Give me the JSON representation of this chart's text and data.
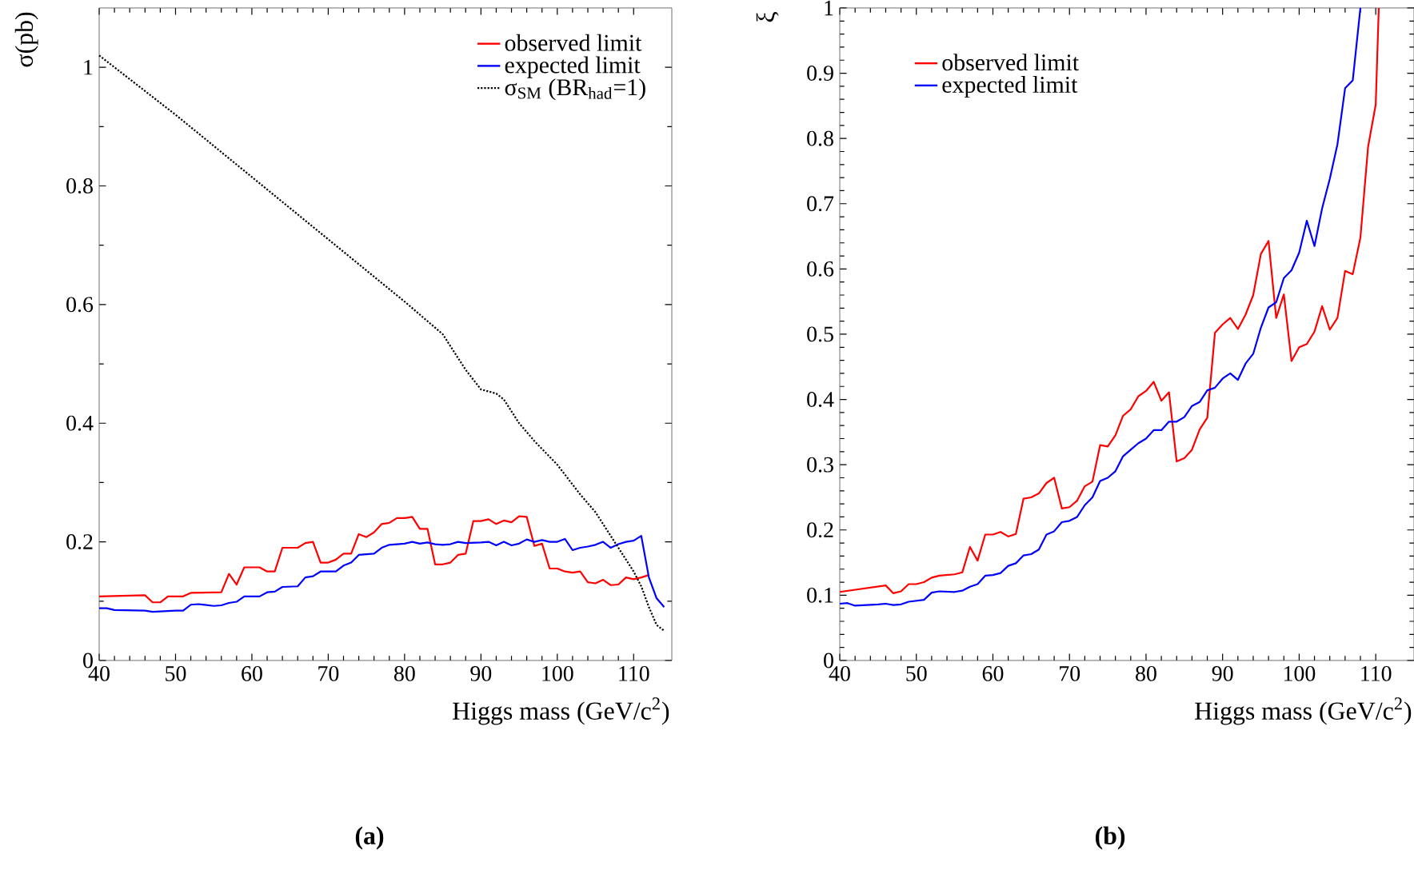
{
  "chart_data": [
    {
      "type": "line",
      "xlabel": "Higgs mass (GeV/c$^{2}$)",
      "ylabel": "σ(pb)",
      "xlim": [
        40,
        115
      ],
      "ylim": [
        0,
        1.1
      ],
      "xticks": [
        40,
        50,
        60,
        70,
        80,
        90,
        100,
        110
      ],
      "yticks": [
        0,
        0.2,
        0.4,
        0.6,
        0.8,
        1
      ],
      "legend": "top right",
      "annotations": [
        "(a)"
      ],
      "series": [
        {
          "name": "observed limit",
          "color": "#ff0000",
          "x": [
            40,
            46,
            47,
            48,
            49,
            51,
            52,
            56,
            57,
            58,
            59,
            61,
            62,
            63,
            64,
            66,
            67,
            68,
            69,
            70,
            71,
            72,
            73,
            74,
            75,
            76,
            77,
            78,
            79,
            80,
            81,
            82,
            83,
            84,
            85,
            86,
            87,
            88,
            89,
            90,
            91,
            92,
            93,
            94,
            95,
            96,
            97,
            98,
            99,
            100,
            101,
            102,
            103,
            104,
            105,
            106,
            107,
            108,
            109,
            110,
            111,
            112
          ],
          "values": [
            0.108,
            0.11,
            0.098,
            0.098,
            0.108,
            0.108,
            0.114,
            0.115,
            0.146,
            0.128,
            0.157,
            0.157,
            0.15,
            0.15,
            0.19,
            0.19,
            0.198,
            0.2,
            0.165,
            0.165,
            0.17,
            0.18,
            0.18,
            0.213,
            0.208,
            0.216,
            0.23,
            0.232,
            0.24,
            0.24,
            0.242,
            0.222,
            0.222,
            0.162,
            0.162,
            0.165,
            0.178,
            0.18,
            0.235,
            0.235,
            0.238,
            0.23,
            0.236,
            0.233,
            0.243,
            0.242,
            0.193,
            0.197,
            0.155,
            0.155,
            0.15,
            0.148,
            0.15,
            0.132,
            0.13,
            0.136,
            0.127,
            0.128,
            0.14,
            0.137,
            0.14,
            0.144
          ]
        },
        {
          "name": "expected limit",
          "color": "#0000ff",
          "x": [
            40,
            41,
            42,
            46,
            47,
            50,
            51,
            52,
            53,
            55,
            56,
            57,
            58,
            59,
            61,
            62,
            63,
            64,
            66,
            67,
            68,
            69,
            71,
            72,
            73,
            74,
            76,
            77,
            78,
            80,
            81,
            82,
            83,
            84,
            85,
            86,
            87,
            88,
            90,
            91,
            92,
            93,
            94,
            95,
            96,
            97,
            98,
            99,
            100,
            101,
            102,
            103,
            104,
            105,
            106,
            107,
            108,
            109,
            110,
            111,
            112,
            113,
            114
          ],
          "values": [
            0.088,
            0.088,
            0.085,
            0.084,
            0.082,
            0.084,
            0.084,
            0.094,
            0.095,
            0.092,
            0.093,
            0.097,
            0.099,
            0.108,
            0.108,
            0.115,
            0.116,
            0.124,
            0.125,
            0.14,
            0.142,
            0.15,
            0.15,
            0.16,
            0.165,
            0.178,
            0.18,
            0.19,
            0.195,
            0.197,
            0.2,
            0.197,
            0.199,
            0.196,
            0.195,
            0.196,
            0.2,
            0.198,
            0.199,
            0.2,
            0.194,
            0.2,
            0.194,
            0.197,
            0.204,
            0.2,
            0.203,
            0.2,
            0.2,
            0.205,
            0.186,
            0.19,
            0.192,
            0.195,
            0.2,
            0.19,
            0.196,
            0.2,
            0.202,
            0.21,
            0.14,
            0.105,
            0.09
          ]
        },
        {
          "name": "σ$_{SM}$ (BR$_{had}$=1)",
          "color": "#000000",
          "line_style": "dotted",
          "x": [
            40,
            50,
            60,
            70,
            80,
            85,
            88,
            90,
            92,
            93,
            95,
            97,
            100,
            103,
            105,
            108,
            110,
            111,
            112,
            113,
            114
          ],
          "values": [
            1.02,
            0.92,
            0.815,
            0.71,
            0.605,
            0.55,
            0.49,
            0.457,
            0.45,
            0.44,
            0.4,
            0.37,
            0.33,
            0.28,
            0.25,
            0.19,
            0.15,
            0.125,
            0.09,
            0.06,
            0.05
          ]
        }
      ]
    },
    {
      "type": "line",
      "xlabel": "Higgs mass (GeV/c$^{2}$)",
      "ylabel": "ξ",
      "xlim": [
        40,
        115
      ],
      "ylim": [
        0,
        1
      ],
      "xticks": [
        40,
        50,
        60,
        70,
        80,
        90,
        100,
        110
      ],
      "yticks": [
        0,
        0.1,
        0.2,
        0.3,
        0.4,
        0.5,
        0.6,
        0.7,
        0.8,
        0.9,
        1
      ],
      "legend": "top left",
      "annotations": [
        "(b)"
      ],
      "series": [
        {
          "name": "observed limit",
          "color": "#ff0000",
          "x": [
            40,
            43,
            46,
            47,
            48,
            49,
            50,
            51,
            52,
            53,
            55,
            56,
            57,
            58,
            59,
            60,
            61,
            62,
            63,
            64,
            65,
            66,
            67,
            68,
            69,
            70,
            71,
            72,
            73,
            74,
            75,
            76,
            77,
            78,
            79,
            80,
            81,
            82,
            83,
            84,
            85,
            86,
            87,
            88,
            89,
            90,
            91,
            92,
            93,
            94,
            95,
            96,
            97,
            98,
            99,
            100,
            101,
            102,
            103,
            104,
            105,
            106,
            107,
            108,
            109,
            110,
            110.4
          ],
          "values": [
            0.105,
            0.11,
            0.115,
            0.103,
            0.106,
            0.117,
            0.117,
            0.12,
            0.127,
            0.13,
            0.132,
            0.135,
            0.174,
            0.153,
            0.193,
            0.193,
            0.197,
            0.19,
            0.194,
            0.248,
            0.25,
            0.256,
            0.272,
            0.28,
            0.233,
            0.235,
            0.245,
            0.267,
            0.274,
            0.33,
            0.328,
            0.345,
            0.375,
            0.385,
            0.405,
            0.413,
            0.427,
            0.398,
            0.411,
            0.305,
            0.31,
            0.323,
            0.354,
            0.372,
            0.502,
            0.515,
            0.525,
            0.508,
            0.53,
            0.56,
            0.623,
            0.643,
            0.525,
            0.561,
            0.459,
            0.48,
            0.485,
            0.504,
            0.543,
            0.507,
            0.525,
            0.597,
            0.592,
            0.648,
            0.787,
            0.852,
            1.0
          ]
        },
        {
          "name": "expected limit",
          "color": "#0000ff",
          "x": [
            40,
            41,
            42,
            45,
            46,
            47,
            48,
            49,
            51,
            52,
            53,
            55,
            56,
            57,
            58,
            59,
            60,
            61,
            62,
            63,
            64,
            65,
            66,
            67,
            68,
            69,
            70,
            71,
            72,
            73,
            74,
            75,
            76,
            77,
            78,
            79,
            80,
            81,
            82,
            83,
            84,
            85,
            86,
            87,
            88,
            89,
            90,
            91,
            92,
            93,
            94,
            95,
            96,
            97,
            98,
            99,
            100,
            101,
            102,
            103,
            104,
            105,
            106,
            107,
            108
          ],
          "values": [
            0.087,
            0.088,
            0.084,
            0.086,
            0.087,
            0.085,
            0.086,
            0.09,
            0.093,
            0.104,
            0.106,
            0.105,
            0.107,
            0.113,
            0.117,
            0.13,
            0.131,
            0.134,
            0.145,
            0.149,
            0.161,
            0.163,
            0.17,
            0.193,
            0.198,
            0.212,
            0.214,
            0.22,
            0.238,
            0.25,
            0.275,
            0.28,
            0.29,
            0.313,
            0.323,
            0.333,
            0.34,
            0.353,
            0.353,
            0.366,
            0.366,
            0.373,
            0.39,
            0.396,
            0.414,
            0.418,
            0.432,
            0.44,
            0.43,
            0.455,
            0.47,
            0.51,
            0.541,
            0.549,
            0.586,
            0.598,
            0.625,
            0.674,
            0.635,
            0.693,
            0.738,
            0.791,
            0.877,
            0.889,
            1.0
          ]
        }
      ]
    }
  ]
}
